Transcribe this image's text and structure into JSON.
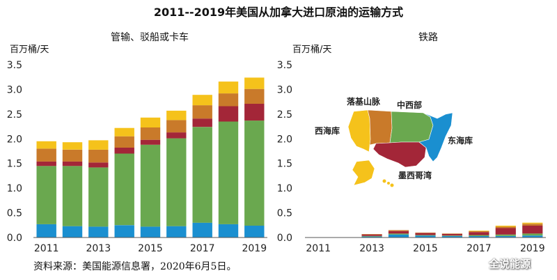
{
  "title": "2011--2019年美国从加拿大进口原油的运输方式",
  "footer": "资料来源：美国能源信息署，2020年6月5日。",
  "watermark": "全说能源",
  "map": {
    "labels": {
      "west": "西海库",
      "rocky": "落基山脉",
      "midwest": "中西部",
      "east": "东海库",
      "gulf": "墨西哥湾"
    },
    "colors": {
      "west": "#f5c21b",
      "rocky": "#c97a2a",
      "midwest": "#6aa84f",
      "east": "#1a8fd0",
      "gulf": "#a32638"
    }
  },
  "chart_data": [
    {
      "type": "bar",
      "stacked": true,
      "title": "管输、驳船或卡车",
      "ylabel": "百万桶/天",
      "ylim": [
        0,
        3.5
      ],
      "yticks": [
        "0.0",
        "0.5",
        "1.0",
        "1.5",
        "2.0",
        "2.5",
        "3.0",
        "3.5"
      ],
      "categories": [
        "2011",
        "2012",
        "2013",
        "2014",
        "2015",
        "2016",
        "2017",
        "2018",
        "2019"
      ],
      "xtick_labels": [
        "2011",
        "",
        "2013",
        "",
        "2015",
        "",
        "2017",
        "",
        "2019"
      ],
      "series": [
        {
          "region": "east",
          "color": "#1a8fd0",
          "values": [
            0.27,
            0.23,
            0.22,
            0.25,
            0.22,
            0.23,
            0.3,
            0.27,
            0.24
          ]
        },
        {
          "region": "midwest",
          "color": "#6aa84f",
          "values": [
            1.18,
            1.22,
            1.2,
            1.45,
            1.66,
            1.78,
            1.94,
            2.08,
            2.13
          ]
        },
        {
          "region": "gulf",
          "color": "#a32638",
          "values": [
            0.09,
            0.09,
            0.1,
            0.12,
            0.1,
            0.12,
            0.17,
            0.31,
            0.34
          ]
        },
        {
          "region": "rocky",
          "color": "#c97a2a",
          "values": [
            0.26,
            0.24,
            0.26,
            0.23,
            0.25,
            0.25,
            0.27,
            0.26,
            0.3
          ]
        },
        {
          "region": "west",
          "color": "#f5c21b",
          "values": [
            0.15,
            0.15,
            0.19,
            0.17,
            0.2,
            0.19,
            0.21,
            0.24,
            0.23
          ]
        }
      ]
    },
    {
      "type": "bar",
      "stacked": true,
      "title": "铁路",
      "ylabel": "百万桶/天",
      "ylim": [
        0,
        3.5
      ],
      "yticks": [
        "0.0",
        "0.5",
        "1.0",
        "1.5",
        "2.0",
        "2.5",
        "3.0",
        "3.5"
      ],
      "categories": [
        "2011",
        "2012",
        "2013",
        "2014",
        "2015",
        "2016",
        "2017",
        "2018",
        "2019"
      ],
      "xtick_labels": [
        "2011",
        "",
        "2013",
        "",
        "2015",
        "",
        "2017",
        "",
        "2019"
      ],
      "series": [
        {
          "region": "east",
          "color": "#1a8fd0",
          "values": [
            0.0,
            0.0,
            0.02,
            0.06,
            0.04,
            0.03,
            0.03,
            0.03,
            0.04
          ]
        },
        {
          "region": "midwest",
          "color": "#6aa84f",
          "values": [
            0.0,
            0.0,
            0.01,
            0.02,
            0.01,
            0.01,
            0.02,
            0.03,
            0.04
          ]
        },
        {
          "region": "gulf",
          "color": "#a32638",
          "values": [
            0.0,
            0.0,
            0.03,
            0.05,
            0.04,
            0.03,
            0.06,
            0.13,
            0.16
          ]
        },
        {
          "region": "rocky",
          "color": "#c97a2a",
          "values": [
            0.0,
            0.0,
            0.01,
            0.02,
            0.01,
            0.01,
            0.02,
            0.03,
            0.04
          ]
        },
        {
          "region": "west",
          "color": "#f5c21b",
          "values": [
            0.0,
            0.0,
            0.0,
            0.0,
            0.0,
            0.0,
            0.01,
            0.02,
            0.02
          ]
        }
      ]
    }
  ]
}
